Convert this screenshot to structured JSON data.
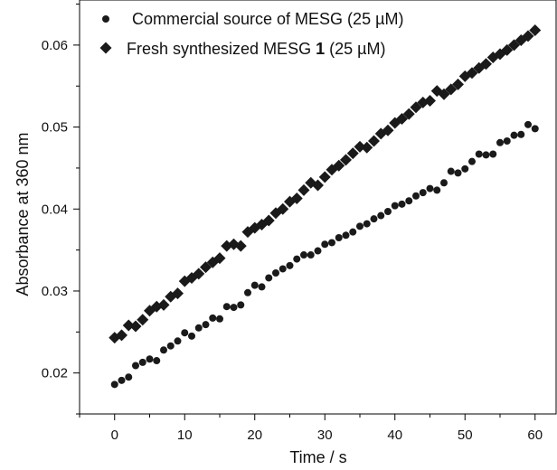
{
  "chart_data": {
    "type": "scatter",
    "xlabel": "Time / s",
    "ylabel": "Absorbance at 360 nm",
    "xlim": [
      -5,
      63
    ],
    "ylim": [
      0.015,
      0.0655
    ],
    "x_ticks": [
      0,
      10,
      20,
      30,
      40,
      50,
      60
    ],
    "x_tick_labels": [
      "0",
      "10",
      "20",
      "30",
      "40",
      "50",
      "60"
    ],
    "y_ticks": [
      0.02,
      0.03,
      0.04,
      0.05,
      0.06
    ],
    "y_tick_labels": [
      "0.02",
      "0.03",
      "0.04",
      "0.05",
      "0.06"
    ],
    "legend_position": "top-left",
    "series": [
      {
        "name": "Commercial source of MESG (25 µM)",
        "marker": "circle",
        "color": "#1a1a1a",
        "x": [
          0,
          1,
          2,
          3,
          4,
          5,
          6,
          7,
          8,
          9,
          10,
          11,
          12,
          13,
          14,
          15,
          16,
          17,
          18,
          19,
          20,
          21,
          22,
          23,
          24,
          25,
          26,
          27,
          28,
          29,
          30,
          31,
          32,
          33,
          34,
          35,
          36,
          37,
          38,
          39,
          40,
          41,
          42,
          43,
          44,
          45,
          46,
          47,
          48,
          49,
          50,
          51,
          52,
          53,
          54,
          55,
          56,
          57,
          58,
          59,
          60
        ],
        "y": [
          0.0186,
          0.0191,
          0.0195,
          0.0209,
          0.0213,
          0.0217,
          0.0215,
          0.0228,
          0.0233,
          0.0239,
          0.0249,
          0.0245,
          0.0255,
          0.0259,
          0.0267,
          0.0266,
          0.0281,
          0.028,
          0.0283,
          0.0298,
          0.0307,
          0.0305,
          0.0316,
          0.0322,
          0.0327,
          0.0331,
          0.0339,
          0.0344,
          0.0344,
          0.0349,
          0.0357,
          0.0359,
          0.0365,
          0.0368,
          0.0372,
          0.0379,
          0.0382,
          0.0388,
          0.0392,
          0.0397,
          0.0404,
          0.0406,
          0.041,
          0.0416,
          0.042,
          0.0425,
          0.0423,
          0.0432,
          0.0446,
          0.0444,
          0.0449,
          0.0458,
          0.0467,
          0.0466,
          0.0467,
          0.0481,
          0.0483,
          0.049,
          0.0491,
          0.0503,
          0.0498
        ]
      },
      {
        "name_prefix": "Fresh synthesized MESG ",
        "name_bold": "1",
        "name_suffix": " (25 µM)",
        "marker": "diamond",
        "color": "#1a1a1a",
        "x": [
          0,
          1,
          2,
          3,
          4,
          5,
          6,
          7,
          8,
          9,
          10,
          11,
          12,
          13,
          14,
          15,
          16,
          17,
          18,
          19,
          20,
          21,
          22,
          23,
          24,
          25,
          26,
          27,
          28,
          29,
          30,
          31,
          32,
          33,
          34,
          35,
          36,
          37,
          38,
          39,
          40,
          41,
          42,
          43,
          44,
          45,
          46,
          47,
          48,
          49,
          50,
          51,
          52,
          53,
          54,
          55,
          56,
          57,
          58,
          59,
          60
        ],
        "y": [
          0.0243,
          0.0246,
          0.0258,
          0.0257,
          0.0265,
          0.0276,
          0.0281,
          0.0283,
          0.0293,
          0.0297,
          0.0312,
          0.0316,
          0.0321,
          0.0329,
          0.0335,
          0.034,
          0.0355,
          0.0357,
          0.0355,
          0.0372,
          0.0377,
          0.0381,
          0.0386,
          0.0395,
          0.04,
          0.0409,
          0.0413,
          0.0423,
          0.0432,
          0.0429,
          0.0439,
          0.0448,
          0.0453,
          0.046,
          0.0468,
          0.0476,
          0.0475,
          0.0483,
          0.0492,
          0.0496,
          0.0505,
          0.051,
          0.0516,
          0.0524,
          0.053,
          0.0532,
          0.0544,
          0.054,
          0.0546,
          0.0552,
          0.0562,
          0.0566,
          0.0572,
          0.0577,
          0.0585,
          0.0589,
          0.0594,
          0.06,
          0.0606,
          0.0611,
          0.0618
        ]
      }
    ]
  }
}
